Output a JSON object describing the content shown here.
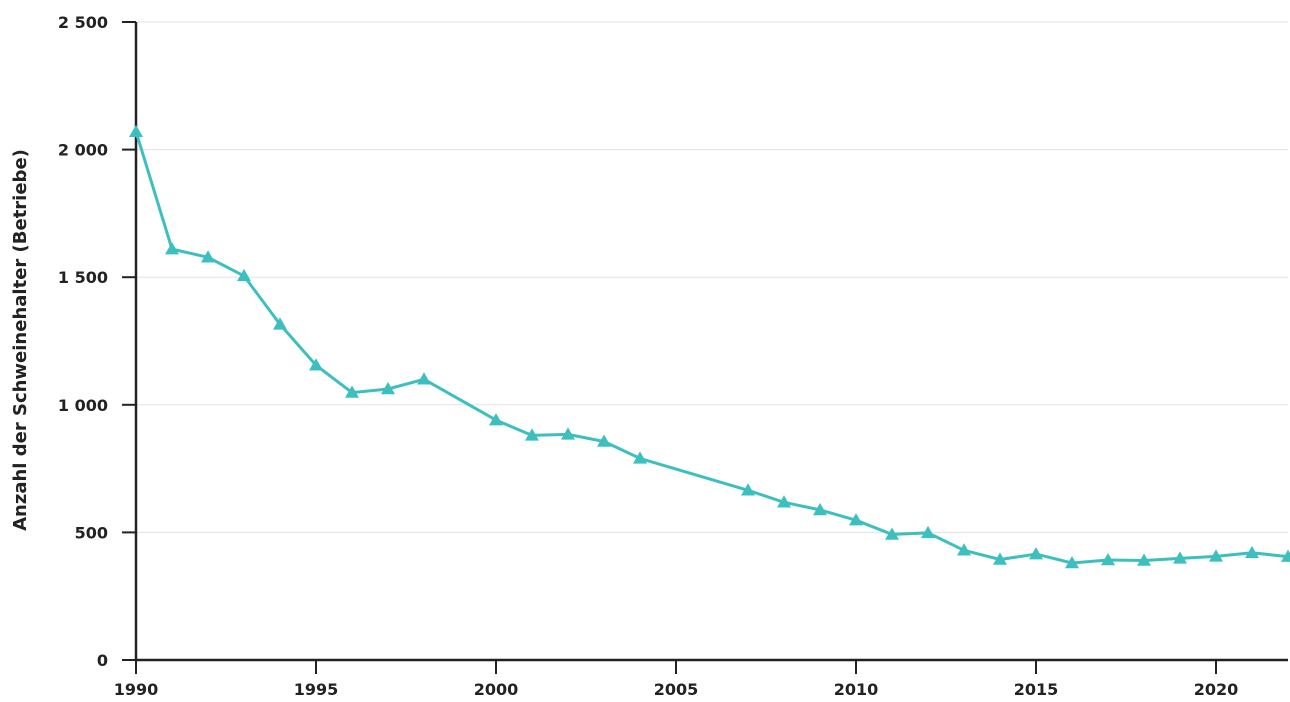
{
  "chart_data": {
    "type": "line",
    "title": "",
    "xlabel": "",
    "ylabel": "Anzahl der Schweinehalter (Betriebe)",
    "xlim": [
      1990,
      2022
    ],
    "ylim": [
      0,
      2500
    ],
    "x_ticks": [
      1990,
      1995,
      2000,
      2005,
      2010,
      2015,
      2020
    ],
    "x_tick_labels": [
      "1990",
      "1995",
      "2000",
      "2005",
      "2010",
      "2015",
      "2020"
    ],
    "y_ticks": [
      0,
      500,
      1000,
      1500,
      2000,
      2500
    ],
    "y_tick_labels": [
      "0",
      "500",
      "1 000",
      "1 500",
      "2 000",
      "2 500"
    ],
    "grid": "horizontal",
    "legend": "none",
    "series": [
      {
        "marker": "triangle",
        "color": "#3dbfbf",
        "x": [
          1990,
          1991,
          1992,
          1993,
          1994,
          1995,
          1996,
          1997,
          1998,
          2000,
          2001,
          2002,
          2003,
          2004,
          2007,
          2008,
          2009,
          2010,
          2011,
          2012,
          2013,
          2014,
          2015,
          2016,
          2017,
          2018,
          2019,
          2020,
          2021,
          2022
        ],
        "y": [
          2070,
          1610,
          1578,
          1505,
          1315,
          1155,
          1048,
          1062,
          1100,
          940,
          880,
          884,
          856,
          790,
          665,
          618,
          588,
          548,
          492,
          498,
          430,
          394,
          415,
          380,
          392,
          390,
          398,
          406,
          420,
          405
        ]
      }
    ]
  }
}
